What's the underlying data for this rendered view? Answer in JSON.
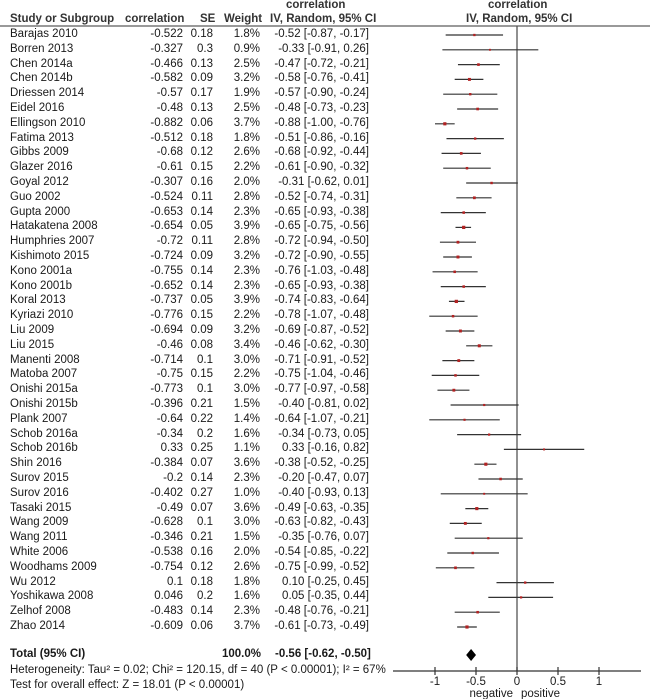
{
  "header": {
    "study": "Study or Subgroup",
    "correlation": "correlation",
    "se": "SE",
    "weight": "Weight",
    "ci_top": "correlation",
    "ci_bottom": "IV, Random, 95% CI",
    "plot_top": "correlation",
    "plot_bottom": "IV, Random, 95% CI"
  },
  "rows": [
    {
      "study": "Barajas 2010",
      "corr": "-0.522",
      "se": "0.18",
      "weight": "1.8%",
      "ci": "-0.52 [-0.87, -0.17]"
    },
    {
      "study": "Borren 2013",
      "corr": "-0.327",
      "se": "0.3",
      "weight": "0.9%",
      "ci": "-0.33 [-0.91, 0.26]"
    },
    {
      "study": "Chen 2014a",
      "corr": "-0.466",
      "se": "0.13",
      "weight": "2.5%",
      "ci": "-0.47 [-0.72, -0.21]"
    },
    {
      "study": "Chen 2014b",
      "corr": "-0.582",
      "se": "0.09",
      "weight": "3.2%",
      "ci": "-0.58 [-0.76, -0.41]"
    },
    {
      "study": "Driessen 2014",
      "corr": "-0.57",
      "se": "0.17",
      "weight": "1.9%",
      "ci": "-0.57 [-0.90, -0.24]"
    },
    {
      "study": "Eidel 2016",
      "corr": "-0.48",
      "se": "0.13",
      "weight": "2.5%",
      "ci": "-0.48 [-0.73, -0.23]"
    },
    {
      "study": "Ellingson 2010",
      "corr": "-0.882",
      "se": "0.06",
      "weight": "3.7%",
      "ci": "-0.88 [-1.00, -0.76]"
    },
    {
      "study": "Fatima 2013",
      "corr": "-0.512",
      "se": "0.18",
      "weight": "1.8%",
      "ci": "-0.51 [-0.86, -0.16]"
    },
    {
      "study": "Gibbs 2009",
      "corr": "-0.68",
      "se": "0.12",
      "weight": "2.6%",
      "ci": "-0.68 [-0.92, -0.44]"
    },
    {
      "study": "Glazer 2016",
      "corr": "-0.61",
      "se": "0.15",
      "weight": "2.2%",
      "ci": "-0.61 [-0.90, -0.32]"
    },
    {
      "study": "Goyal 2012",
      "corr": "-0.307",
      "se": "0.16",
      "weight": "2.0%",
      "ci": "-0.31 [-0.62, 0.01]"
    },
    {
      "study": "Guo 2002",
      "corr": "-0.524",
      "se": "0.11",
      "weight": "2.8%",
      "ci": "-0.52 [-0.74, -0.31]"
    },
    {
      "study": "Gupta 2000",
      "corr": "-0.653",
      "se": "0.14",
      "weight": "2.3%",
      "ci": "-0.65 [-0.93, -0.38]"
    },
    {
      "study": "Hatakatena 2008",
      "corr": "-0.654",
      "se": "0.05",
      "weight": "3.9%",
      "ci": "-0.65 [-0.75, -0.56]"
    },
    {
      "study": "Humphries 2007",
      "corr": "-0.72",
      "se": "0.11",
      "weight": "2.8%",
      "ci": "-0.72 [-0.94, -0.50]"
    },
    {
      "study": "Kishimoto 2015",
      "corr": "-0.724",
      "se": "0.09",
      "weight": "3.2%",
      "ci": "-0.72 [-0.90, -0.55]"
    },
    {
      "study": "Kono 2001a",
      "corr": "-0.755",
      "se": "0.14",
      "weight": "2.3%",
      "ci": "-0.76 [-1.03, -0.48]"
    },
    {
      "study": "Kono 2001b",
      "corr": "-0.652",
      "se": "0.14",
      "weight": "2.3%",
      "ci": "-0.65 [-0.93, -0.38]"
    },
    {
      "study": "Koral 2013",
      "corr": "-0.737",
      "se": "0.05",
      "weight": "3.9%",
      "ci": "-0.74 [-0.83, -0.64]"
    },
    {
      "study": "Kyriazi 2010",
      "corr": "-0.776",
      "se": "0.15",
      "weight": "2.2%",
      "ci": "-0.78 [-1.07, -0.48]"
    },
    {
      "study": "Liu 2009",
      "corr": "-0.694",
      "se": "0.09",
      "weight": "3.2%",
      "ci": "-0.69 [-0.87, -0.52]"
    },
    {
      "study": "Liu 2015",
      "corr": "-0.46",
      "se": "0.08",
      "weight": "3.4%",
      "ci": "-0.46 [-0.62, -0.30]"
    },
    {
      "study": "Manenti 2008",
      "corr": "-0.714",
      "se": "0.1",
      "weight": "3.0%",
      "ci": "-0.71 [-0.91, -0.52]"
    },
    {
      "study": "Matoba 2007",
      "corr": "-0.75",
      "se": "0.15",
      "weight": "2.2%",
      "ci": "-0.75 [-1.04, -0.46]"
    },
    {
      "study": "Onishi 2015a",
      "corr": "-0.773",
      "se": "0.1",
      "weight": "3.0%",
      "ci": "-0.77 [-0.97, -0.58]"
    },
    {
      "study": "Onishi 2015b",
      "corr": "-0.396",
      "se": "0.21",
      "weight": "1.5%",
      "ci": "-0.40 [-0.81, 0.02]"
    },
    {
      "study": "Plank 2007",
      "corr": "-0.64",
      "se": "0.22",
      "weight": "1.4%",
      "ci": "-0.64 [-1.07, -0.21]"
    },
    {
      "study": "Schob 2016a",
      "corr": "-0.34",
      "se": "0.2",
      "weight": "1.6%",
      "ci": "-0.34 [-0.73, 0.05]"
    },
    {
      "study": "Schob 2016b",
      "corr": "0.33",
      "se": "0.25",
      "weight": "1.1%",
      "ci": "0.33 [-0.16, 0.82]"
    },
    {
      "study": "Shin 2016",
      "corr": "-0.384",
      "se": "0.07",
      "weight": "3.6%",
      "ci": "-0.38 [-0.52, -0.25]"
    },
    {
      "study": "Surov 2015",
      "corr": "-0.2",
      "se": "0.14",
      "weight": "2.3%",
      "ci": "-0.20 [-0.47, 0.07]"
    },
    {
      "study": "Surov 2016",
      "corr": "-0.402",
      "se": "0.27",
      "weight": "1.0%",
      "ci": "-0.40 [-0.93, 0.13]"
    },
    {
      "study": "Tasaki 2015",
      "corr": "-0.49",
      "se": "0.07",
      "weight": "3.6%",
      "ci": "-0.49 [-0.63, -0.35]"
    },
    {
      "study": "Wang 2009",
      "corr": "-0.628",
      "se": "0.1",
      "weight": "3.0%",
      "ci": "-0.63 [-0.82, -0.43]"
    },
    {
      "study": "Wang 2011",
      "corr": "-0.346",
      "se": "0.21",
      "weight": "1.5%",
      "ci": "-0.35 [-0.76, 0.07]"
    },
    {
      "study": "White 2006",
      "corr": "-0.538",
      "se": "0.16",
      "weight": "2.0%",
      "ci": "-0.54 [-0.85, -0.22]"
    },
    {
      "study": "Woodhams 2009",
      "corr": "-0.754",
      "se": "0.12",
      "weight": "2.6%",
      "ci": "-0.75 [-0.99, -0.52]"
    },
    {
      "study": "Wu 2012",
      "corr": "0.1",
      "se": "0.18",
      "weight": "1.8%",
      "ci": "0.10 [-0.25, 0.45]"
    },
    {
      "study": "Yoshikawa 2008",
      "corr": "0.046",
      "se": "0.2",
      "weight": "1.6%",
      "ci": "0.05 [-0.35, 0.44]"
    },
    {
      "study": "Zelhof 2008",
      "corr": "-0.483",
      "se": "0.14",
      "weight": "2.3%",
      "ci": "-0.48 [-0.76, -0.21]"
    },
    {
      "study": "Zhao 2014",
      "corr": "-0.609",
      "se": "0.06",
      "weight": "3.7%",
      "ci": "-0.61 [-0.73, -0.49]"
    }
  ],
  "total": {
    "label": "Total (95% CI)",
    "weight": "100.0%",
    "ci": "-0.56 [-0.62, -0.50]"
  },
  "heterogeneity": "Heterogeneity: Tau² = 0.02; Chi² = 120.15, df = 40 (P < 0.00001); I² = 67%",
  "overall_effect": "Test for overall effect: Z = 18.01 (P < 0.00001)",
  "axis": {
    "ticks": [
      "-1",
      "-0.5",
      "0",
      "0.5",
      "1"
    ],
    "label_left": "negative",
    "label_right": "positive"
  },
  "colors": {
    "point": "#b22222",
    "line": "#333333",
    "zero_line": "#555555",
    "diamond": "#000000"
  },
  "chart_data": {
    "type": "forest",
    "title": "correlation IV, Random, 95% CI",
    "xlabel": "negative | positive",
    "xlim": [
      -1.5,
      1.5
    ],
    "xticks": [
      -1,
      -0.5,
      0,
      0.5,
      1
    ],
    "categories": [
      "Barajas 2010",
      "Borren 2013",
      "Chen 2014a",
      "Chen 2014b",
      "Driessen 2014",
      "Eidel 2016",
      "Ellingson 2010",
      "Fatima 2013",
      "Gibbs 2009",
      "Glazer 2016",
      "Goyal 2012",
      "Guo 2002",
      "Gupta 2000",
      "Hatakatena 2008",
      "Humphries 2007",
      "Kishimoto 2015",
      "Kono 2001a",
      "Kono 2001b",
      "Koral 2013",
      "Kyriazi 2010",
      "Liu 2009",
      "Liu 2015",
      "Manenti 2008",
      "Matoba 2007",
      "Onishi 2015a",
      "Onishi 2015b",
      "Plank 2007",
      "Schob 2016a",
      "Schob 2016b",
      "Shin 2016",
      "Surov 2015",
      "Surov 2016",
      "Tasaki 2015",
      "Wang 2009",
      "Wang 2011",
      "White 2006",
      "Woodhams 2009",
      "Wu 2012",
      "Yoshikawa 2008",
      "Zelhof 2008",
      "Zhao 2014"
    ],
    "estimate": [
      -0.52,
      -0.33,
      -0.47,
      -0.58,
      -0.57,
      -0.48,
      -0.88,
      -0.51,
      -0.68,
      -0.61,
      -0.31,
      -0.52,
      -0.65,
      -0.65,
      -0.72,
      -0.72,
      -0.76,
      -0.65,
      -0.74,
      -0.78,
      -0.69,
      -0.46,
      -0.71,
      -0.75,
      -0.77,
      -0.4,
      -0.64,
      -0.34,
      0.33,
      -0.38,
      -0.2,
      -0.4,
      -0.49,
      -0.63,
      -0.35,
      -0.54,
      -0.75,
      0.1,
      0.05,
      -0.48,
      -0.61
    ],
    "lower": [
      -0.87,
      -0.91,
      -0.72,
      -0.76,
      -0.9,
      -0.73,
      -1.0,
      -0.86,
      -0.92,
      -0.9,
      -0.62,
      -0.74,
      -0.93,
      -0.75,
      -0.94,
      -0.9,
      -1.03,
      -0.93,
      -0.83,
      -1.07,
      -0.87,
      -0.62,
      -0.91,
      -1.04,
      -0.97,
      -0.81,
      -1.07,
      -0.73,
      -0.16,
      -0.52,
      -0.47,
      -0.93,
      -0.63,
      -0.82,
      -0.76,
      -0.85,
      -0.99,
      -0.25,
      -0.35,
      -0.76,
      -0.73
    ],
    "upper": [
      -0.17,
      0.26,
      -0.21,
      -0.41,
      -0.24,
      -0.23,
      -0.76,
      -0.16,
      -0.44,
      -0.32,
      0.01,
      -0.31,
      -0.38,
      -0.56,
      -0.5,
      -0.55,
      -0.48,
      -0.38,
      -0.64,
      -0.48,
      -0.52,
      -0.3,
      -0.52,
      -0.46,
      -0.58,
      0.02,
      -0.21,
      0.05,
      0.82,
      -0.25,
      0.07,
      0.13,
      -0.35,
      -0.43,
      0.07,
      -0.22,
      -0.52,
      0.45,
      0.44,
      -0.21,
      -0.49
    ],
    "weight": [
      1.8,
      0.9,
      2.5,
      3.2,
      1.9,
      2.5,
      3.7,
      1.8,
      2.6,
      2.2,
      2.0,
      2.8,
      2.3,
      3.9,
      2.8,
      3.2,
      2.3,
      2.3,
      3.9,
      2.2,
      3.2,
      3.4,
      3.0,
      2.2,
      3.0,
      1.5,
      1.4,
      1.6,
      1.1,
      3.6,
      2.3,
      1.0,
      3.6,
      3.0,
      1.5,
      2.0,
      2.6,
      1.8,
      1.6,
      2.3,
      3.7
    ],
    "pooled": {
      "estimate": -0.56,
      "lower": -0.62,
      "upper": -0.5
    },
    "grid": false
  }
}
